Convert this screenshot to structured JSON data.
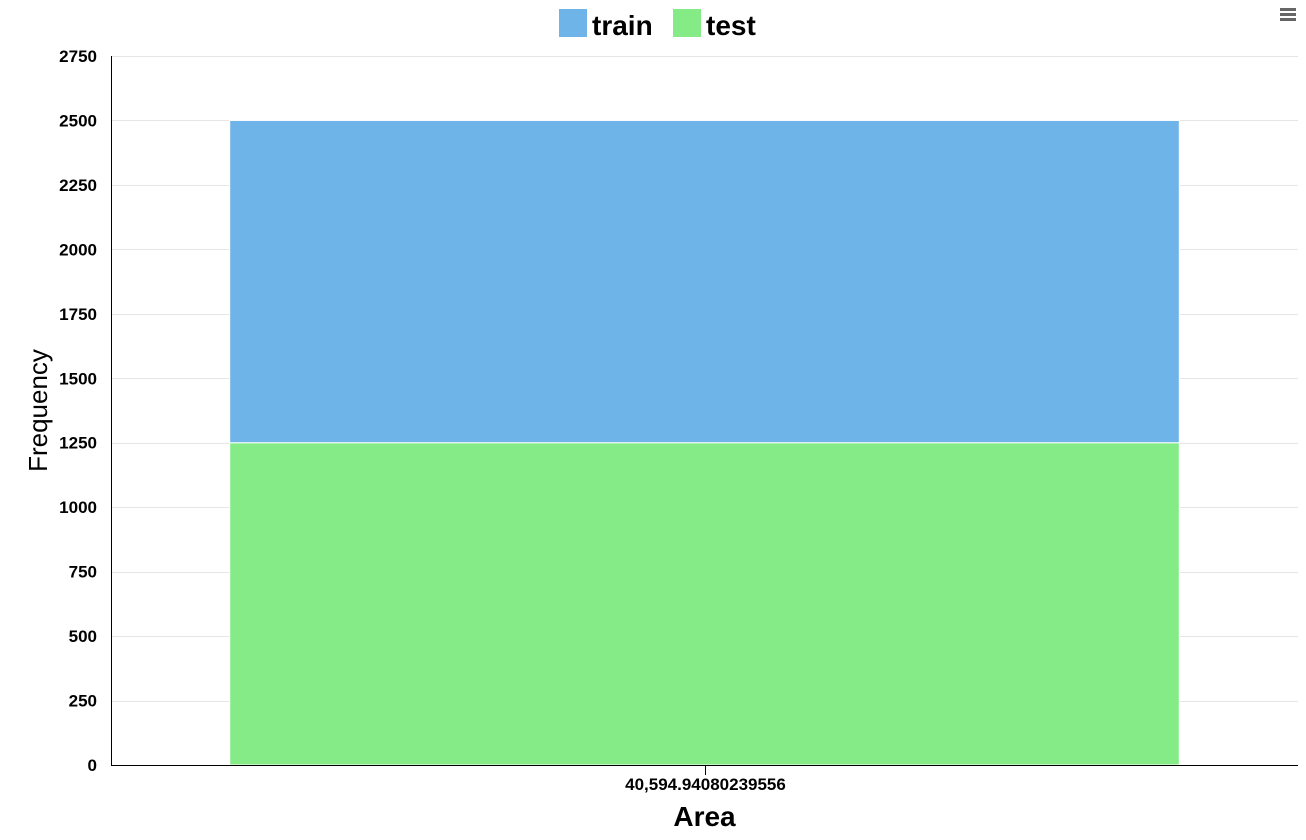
{
  "chart_data": {
    "type": "bar",
    "stacked": true,
    "categories": [
      "40,594.94080239556"
    ],
    "series": [
      {
        "name": "train",
        "values": [
          1250
        ],
        "color": "#6eb4e8"
      },
      {
        "name": "test",
        "values": [
          1250
        ],
        "color": "#85eb87"
      }
    ],
    "xlabel": "Area",
    "ylabel": "Frequency",
    "ylim": [
      0,
      2750
    ],
    "yticks": [
      0,
      250,
      500,
      750,
      1000,
      1250,
      1500,
      1750,
      2000,
      2250,
      2500,
      2750
    ],
    "grid": true,
    "legend_position": "top-center"
  },
  "toolbar": {
    "menu_icon": "hamburger-menu-icon"
  }
}
